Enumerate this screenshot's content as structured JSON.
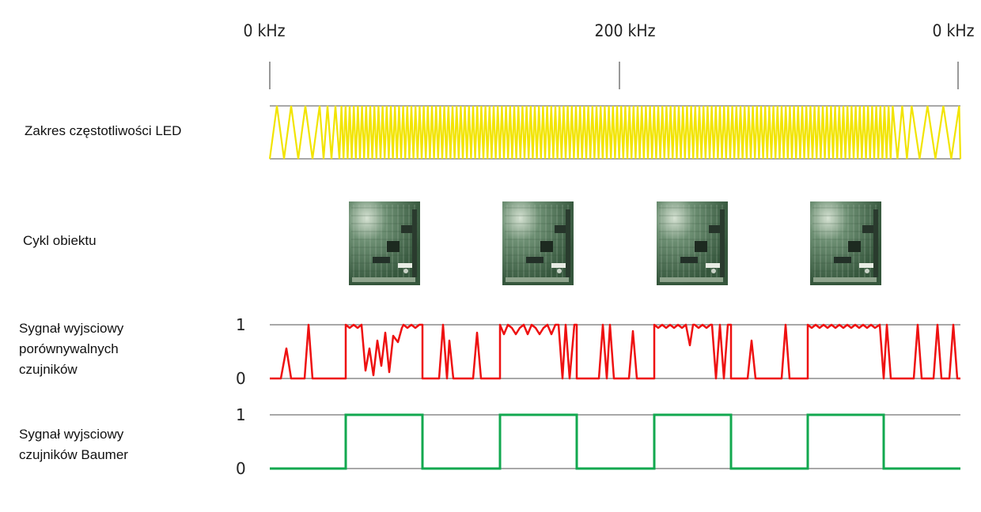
{
  "frequency_axis": {
    "ticks": [
      "0 kHz",
      "200 kHz",
      "0 kHz"
    ]
  },
  "rows": {
    "led": {
      "label": "Zakres częstotliwości LED"
    },
    "object": {
      "label": "Cykl obiektu",
      "object_count": 4,
      "object_icon": "circuit-board"
    },
    "comparable": {
      "label": "Sygnał wyjsciowy\nporównywalnych\nczujników",
      "high": "1",
      "low": "0"
    },
    "baumer": {
      "label": "Sygnał wyjsciowy\nczujników Baumer",
      "high": "1",
      "low": "0"
    }
  },
  "colors": {
    "led_wave": "#f2e400",
    "comparable_signal": "#ee1111",
    "baumer_signal": "#12a84f",
    "guide_line": "#8c8c8c",
    "pcb": "#3e6a45"
  }
}
